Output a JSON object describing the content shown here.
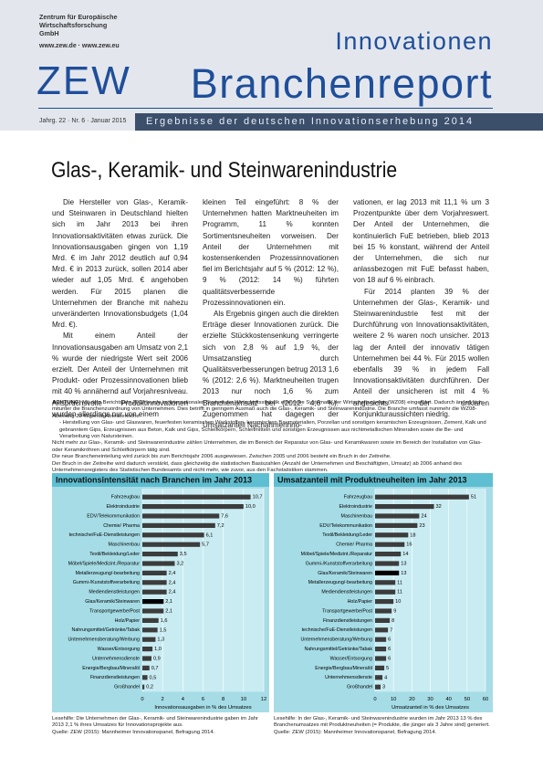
{
  "header": {
    "institute": "Zentrum für Europäische Wirtschaftsforschung GmbH",
    "web": "www.zew.de · www.zew.eu",
    "logo": "ZEW",
    "series": "Innovationen",
    "report": "Branchenreport",
    "issue": "Jahrg. 22 · Nr. 6 · Januar 2015",
    "subtitle": "Ergebnisse der deutschen Innovationserhebung 2014"
  },
  "title": "Glas-, Keramik- und Steinwarenindustrie",
  "columns": [
    [
      "Die Hersteller von Glas-, Keramik- und Steinwaren in Deutschland hielten sich im Jahr 2013 bei ihren Innovationsaktivitäten etwas zurück. Die Innovationsausgaben gingen von 1,19 Mrd. € im Jahr 2012 deutlich auf 0,94 Mrd. € in 2013 zurück, sollen 2014 aber wieder auf 1,05 Mrd. € angehoben werden. Für 2015 planen die Unternehmen der Branche mit nahezu unveränderten Innovationsbudgets (1,04 Mrd. €).",
      "Mit einem Anteil der Innovationsausgaben am Umsatz von 2,1 % wurde der niedrigste Wert seit 2006 erzielt. Der Anteil der Unternehmen mit Produkt- oder Prozessinnovationen blieb mit 40 % annähernd auf Vorjahresniveau. Anspruchsvolle Produktinnovationen wurden allerdings nur von einem"
    ],
    [
      "kleinen Teil eingeführt: 8 % der Unternehmen hatten Marktneuheiten im Programm, 11 % konnten Sortimentsneuheiten vorweisen. Der Anteil der Unternehmen mit kostensenkenden Prozessinnovationen fiel im Berichtsjahr auf 5 % (2012: 12 %), 9 % (2012: 14 %) führten qualitätsverbessernde Prozessinnovationen ein.",
      "Als Ergebnis gingen auch die direkten Erträge dieser Innovationen zurück. Die erzielte Stückkostensenkung verringerte sich von 2,8 % auf 1,9 %, der Umsatzanstieg durch Qualitätsverbesserungen betrug 2013 1,6 % (2012: 2,6 %). Marktneuheiten trugen 2013 nur noch 1,6 % zum Branchenumsatz bei (2012: 4,6 %). Zugenommen hat dagegen der Umsatzanteil Nachahmerinno-"
    ],
    [
      "vationen, er lag 2013 mit 11,1 % um 3 Prozentpunkte über dem Vorjahreswert. Der Anteil der Unternehmen, die kontinuierlich FuE betrieben, blieb 2013 bei 15 % konstant, während der Anteil der Unternehmen, die sich nur anlassbezogen mit FuE befasst haben, von 18 auf 6 % einbrach.",
      "Für 2014 planten 39 % der Unternehmen der Glas-, Keramik- und Steinwarenindustrie fest mit der Durchführung von Innovationsaktivitäten, weitere 2 % waren noch unsicher. 2013 lag der Anteil der innovativ tätigen Unternehmen bei 44 %. Für 2015 wollen ebenfalls 39 % in jedem Fall Innovationsaktivitäten durchführen. Der Anteil der unsicheren ist mit 4 % angesichts der unklaren Konjunkturaussichten niedrig."
    ]
  ],
  "note": {
    "label": "ACHTUNG:",
    "lead": "Mit dem Berichtsjahr 2008 wurde im internationalen System der Wirtschaftsstatistik eine neue Systematik der Wirtschaftszweige (WZ08) eingeführt. Dadurch ändert sich mitunter die Branchenzuordnung von Unternehmen. Dies betrifft in geringem Ausmaß auch die Glas-, Keramik- und Steinwarenindustrie. Die Branche umfasst nunmehr die WZ08-Abteilung 23 folgende Abteilbereiche:",
    "paragraphs": [
      "- Herstellung von Glas- und Glaswaren, feuerfesten keramischen Werkstoffen, keramischen Baumaterialien, Porzellan und sonstigen keramischen Erzeugnissen, Zement, Kalk und gebranntem Gips, Erzeugnissen aus Beton, Kalk und Gips, Schleifkörpern, Schleifmitteln und sonstigen Erzeugnissen aus nichtmetallischen Mineralien sowie die Be- und Verarbeitung von Natursteinen.",
      "Nicht mehr zur Glas-, Keramik- und Steinwarenindustrie zählen Unternehmen, die im Bereich der Reparatur von Glas- und Keramikwaren sowie im Bereich der Installation von Glas- oder Keramikröhren und Schleifkörpern tätig sind.",
      "Die neue Brancheneinteilung wird zurück bis zum Berichtsjahr 2006 ausgewiesen. Zwischen 2005 und 2006 besteht ein Bruch in der Zeitreihe.",
      "Der Bruch in der Zeitreihe wird dadurch verstärkt, dass gleichzeitig die statistischen Basiszahlen (Anzahl der Unternehmen und Beschäftigten, Umsatz) ab 2006 anhand des Unternehmensregisters des Statistischen Bundesamts und nicht mehr, wie zuvor, aus den Fachstatistiken stammen."
    ]
  },
  "chart_data": [
    {
      "type": "bar",
      "orientation": "horizontal",
      "title": "Innovationsintensität nach Branchen im Jahr 2013",
      "categories": [
        "Fahrzeugbau",
        "Elektroindustrie",
        "EDV/Telekommunikation",
        "Chemie/ Pharma",
        "technische/FuE-Dienstleistungen",
        "Maschinenbau",
        "Textil/Bekleidung/Leder",
        "Möbel/Spiele/Medizint./Reparatur",
        "Metallerzeugung/-bearbeitung",
        "Gummi-/Kunststoffverarbeitung",
        "Mediendienstleistungen",
        "Glas/Keramik/Steinwaren",
        "Transportgewerbe/Post",
        "Holz/Papier",
        "Nahrungsmittel/Getränke/Tabak",
        "Unternehmensberatung/Werbung",
        "Wasser/Entsorgung",
        "Unternehmensdienste",
        "Energie/Bergbau/Mineralöl",
        "Finanzdienstleistungen",
        "Großhandel"
      ],
      "values": [
        10.7,
        10.0,
        7.6,
        7.2,
        6.1,
        5.7,
        3.5,
        3.2,
        2.4,
        2.4,
        2.4,
        2.1,
        2.1,
        1.6,
        1.5,
        1.3,
        1.0,
        0.9,
        0.7,
        0.5,
        0.2
      ],
      "value_labels": [
        "10,7",
        "10,0",
        "7,6",
        "7,2",
        "6,1",
        "5,7",
        "3,5",
        "3,2",
        "2,4",
        "2,4",
        "2,4",
        "2,1",
        "2,1",
        "1,6",
        "1,5",
        "1,3",
        "1,0",
        "0,9",
        "0,7",
        "0,5",
        "0,2"
      ],
      "colors": [
        "#3c3c3c",
        "#3c3c3c",
        "#3c3c3c",
        "#3c3c3c",
        "#3c3c3c",
        "#3c3c3c",
        "#3c3c3c",
        "#3c3c3c",
        "#3c3c3c",
        "#3c3c3c",
        "#3c3c3c",
        "#000000",
        "#3c3c3c",
        "#3c3c3c",
        "#3c3c3c",
        "#3c3c3c",
        "#3c3c3c",
        "#3c3c3c",
        "#3c3c3c",
        "#3c3c3c",
        "#3c3c3c"
      ],
      "xlim": [
        0,
        12
      ],
      "xticks": [
        0,
        2,
        4,
        6,
        8,
        10,
        12
      ],
      "xlabel": "Innovationsausgaben in % des Umsatzes",
      "grid": true,
      "caption": [
        "Lesehilfe: Die Unternehmen der Glas-, Keramik- und Steinwarenindustrie gaben im Jahr 2013 2,1 % ihres Umsatzes für Innovationsprojekte aus.",
        "Quelle: ZEW (2015): Mannheimer Innovationspanel, Befragung 2014."
      ]
    },
    {
      "type": "bar",
      "orientation": "horizontal",
      "title": "Umsatzanteil mit Produktneuheiten im Jahr 2013",
      "categories": [
        "Fahrzeugbau",
        "Elektroindustrie",
        "Maschinenbau",
        "EDV/Telekommunikation",
        "Textil/Bekleidung/Leder",
        "Chemie/ Pharma",
        "Möbel/Spiele/Medizint./Reparatur",
        "Gummi-/Kunststoffverarbeitung",
        "Glas/Keramik/Steinwaren",
        "Metallerzeugung/-bearbeitung",
        "Mediendienstleistungen",
        "Holz/Papier",
        "Transportgewerbe/Post",
        "Finanzdienstleistungen",
        "technische/FuE-Dienstleistungen",
        "Unternehmensberatung/Werbung",
        "Nahrungsmittel/Getränke/Tabak",
        "Wasser/Entsorgung",
        "Energie/Bergbau/Mineralöl",
        "Unternehmensdienste",
        "Großhandel"
      ],
      "values": [
        51,
        32,
        24,
        23,
        18,
        16,
        14,
        13,
        13,
        11,
        11,
        10,
        9,
        8,
        7,
        6,
        6,
        6,
        5,
        4,
        3
      ],
      "colors": [
        "#3c3c3c",
        "#3c3c3c",
        "#3c3c3c",
        "#3c3c3c",
        "#3c3c3c",
        "#3c3c3c",
        "#3c3c3c",
        "#3c3c3c",
        "#000000",
        "#3c3c3c",
        "#3c3c3c",
        "#3c3c3c",
        "#3c3c3c",
        "#3c3c3c",
        "#3c3c3c",
        "#3c3c3c",
        "#3c3c3c",
        "#3c3c3c",
        "#3c3c3c",
        "#3c3c3c",
        "#3c3c3c"
      ],
      "xlim": [
        0,
        60
      ],
      "xticks": [
        0,
        10,
        20,
        30,
        40,
        50,
        60
      ],
      "xlabel": "Umsatzanteil in % des Umsatzes",
      "grid": true,
      "caption": [
        "Lesehilfe: In der Glas-, Keramik- und Steinwarenindustrie wurden im Jahr 2013 13 % des Branchenumsatzes mit Produktneuheiten (= Produkte, die jünger als 3 Jahre sind) generiert.",
        "Quelle: ZEW (2015): Mannheimer Innovationspanel, Befragung 2014."
      ]
    }
  ]
}
